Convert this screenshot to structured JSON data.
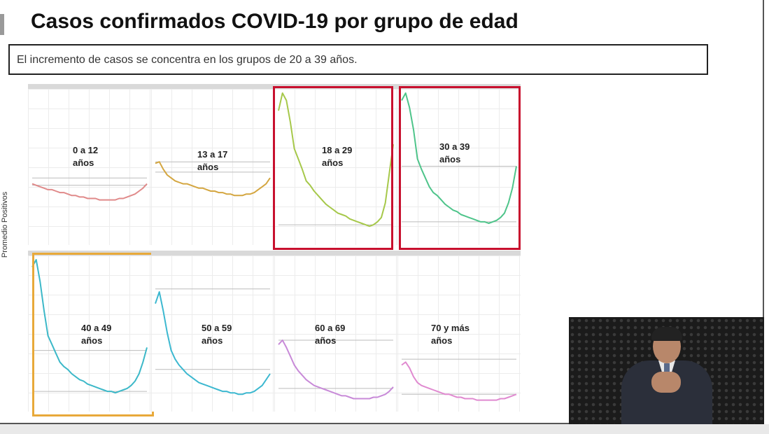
{
  "slide": {
    "title": "Casos confirmados COVID-19 por grupo de edad",
    "subtitle": "El incremento de casos se concentra en los grupos de 20 a 39 años."
  },
  "chart_data": {
    "type": "line",
    "ylabel": "Promedio Positivos",
    "highlight_colors": {
      "red": "#c8102e",
      "orange": "#e8a93a"
    },
    "panels": [
      {
        "label_line1": "0 a 12",
        "label_line2": "años",
        "color": "#e08a8a",
        "highlight": null,
        "values": [
          0.62,
          0.63,
          0.64,
          0.65,
          0.66,
          0.66,
          0.67,
          0.68,
          0.68,
          0.69,
          0.7,
          0.7,
          0.71,
          0.71,
          0.72,
          0.72,
          0.72,
          0.73,
          0.73,
          0.73,
          0.73,
          0.73,
          0.72,
          0.72,
          0.71,
          0.7,
          0.69,
          0.67,
          0.65,
          0.62
        ],
        "refs": [
          0.58,
          0.63
        ]
      },
      {
        "label_line1": "13 a 17",
        "label_line2": "años",
        "color": "#d4a640",
        "highlight": null,
        "values": [
          0.48,
          0.47,
          0.52,
          0.56,
          0.58,
          0.6,
          0.61,
          0.62,
          0.62,
          0.63,
          0.64,
          0.65,
          0.65,
          0.66,
          0.67,
          0.67,
          0.68,
          0.68,
          0.69,
          0.69,
          0.7,
          0.7,
          0.7,
          0.69,
          0.69,
          0.68,
          0.66,
          0.64,
          0.62,
          0.58
        ],
        "refs": [
          0.47,
          0.54
        ]
      },
      {
        "label_line1": "18 a 29",
        "label_line2": "años",
        "color": "#a6c84a",
        "highlight": "red",
        "values": [
          0.12,
          0.0,
          0.05,
          0.2,
          0.38,
          0.45,
          0.52,
          0.6,
          0.63,
          0.67,
          0.7,
          0.73,
          0.76,
          0.78,
          0.8,
          0.82,
          0.83,
          0.84,
          0.86,
          0.87,
          0.88,
          0.89,
          0.9,
          0.91,
          0.9,
          0.88,
          0.85,
          0.75,
          0.55,
          0.35
        ],
        "refs": [
          0.9
        ]
      },
      {
        "label_line1": "30 a 39",
        "label_line2": "años",
        "color": "#4ec48a",
        "highlight": "red",
        "values": [
          0.05,
          0.0,
          0.1,
          0.25,
          0.45,
          0.52,
          0.58,
          0.64,
          0.68,
          0.7,
          0.73,
          0.76,
          0.78,
          0.8,
          0.81,
          0.83,
          0.84,
          0.85,
          0.86,
          0.87,
          0.88,
          0.88,
          0.89,
          0.88,
          0.87,
          0.85,
          0.82,
          0.75,
          0.65,
          0.5
        ],
        "refs": [
          0.5,
          0.88
        ]
      },
      {
        "label_line1": "40 a 49",
        "label_line2": "años",
        "color": "#3cb8c8",
        "highlight": "orange",
        "values": [
          0.05,
          0.0,
          0.15,
          0.35,
          0.52,
          0.58,
          0.64,
          0.7,
          0.73,
          0.75,
          0.78,
          0.8,
          0.82,
          0.83,
          0.85,
          0.86,
          0.87,
          0.88,
          0.89,
          0.9,
          0.9,
          0.91,
          0.9,
          0.89,
          0.88,
          0.86,
          0.83,
          0.78,
          0.7,
          0.6
        ],
        "refs": [
          0.62,
          0.9
        ]
      },
      {
        "label_line1": "50 a 59",
        "label_line2": "años",
        "color": "#3cb8d0",
        "highlight": null,
        "values": [
          0.3,
          0.22,
          0.35,
          0.5,
          0.62,
          0.68,
          0.72,
          0.75,
          0.78,
          0.8,
          0.82,
          0.84,
          0.85,
          0.86,
          0.87,
          0.88,
          0.89,
          0.9,
          0.9,
          0.91,
          0.91,
          0.92,
          0.92,
          0.91,
          0.91,
          0.9,
          0.88,
          0.86,
          0.82,
          0.78
        ],
        "refs": [
          0.2,
          0.75
        ]
      },
      {
        "label_line1": "60 a 69",
        "label_line2": "años",
        "color": "#c88ad8",
        "highlight": null,
        "values": [
          0.58,
          0.55,
          0.6,
          0.66,
          0.72,
          0.76,
          0.79,
          0.82,
          0.84,
          0.86,
          0.87,
          0.88,
          0.89,
          0.9,
          0.91,
          0.92,
          0.93,
          0.93,
          0.94,
          0.95,
          0.95,
          0.95,
          0.95,
          0.95,
          0.94,
          0.94,
          0.93,
          0.92,
          0.9,
          0.87
        ],
        "refs": [
          0.55,
          0.88
        ]
      },
      {
        "label_line1": "70 y más",
        "label_line2": "años",
        "color": "#e08ad0",
        "highlight": null,
        "values": [
          0.72,
          0.7,
          0.74,
          0.8,
          0.84,
          0.86,
          0.87,
          0.88,
          0.89,
          0.9,
          0.91,
          0.92,
          0.92,
          0.93,
          0.94,
          0.94,
          0.95,
          0.95,
          0.95,
          0.96,
          0.96,
          0.96,
          0.96,
          0.96,
          0.96,
          0.95,
          0.95,
          0.94,
          0.93,
          0.92
        ],
        "refs": [
          0.68,
          0.92
        ]
      }
    ]
  }
}
